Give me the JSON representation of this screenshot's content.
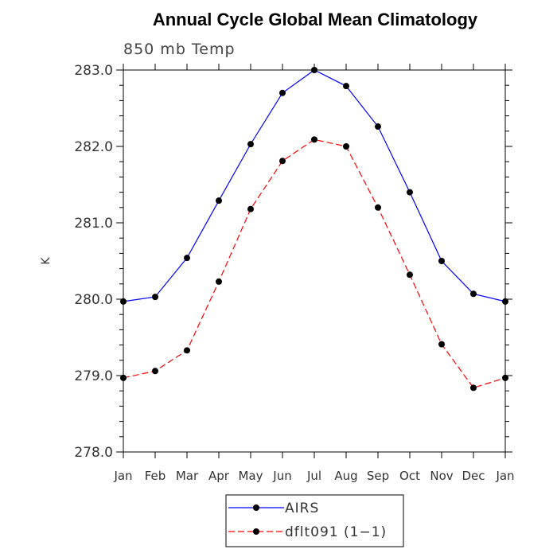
{
  "chart_data": {
    "type": "line",
    "title": "Annual Cycle Global Mean Climatology",
    "subtitle": "850 mb Temp",
    "ylabel": "K",
    "xlabel": "",
    "categories": [
      "Jan",
      "Feb",
      "Mar",
      "Apr",
      "May",
      "Jun",
      "Jul",
      "Aug",
      "Sep",
      "Oct",
      "Nov",
      "Dec",
      "Jan"
    ],
    "ylim": [
      278.0,
      283.0
    ],
    "yticks": [
      "278.0",
      "279.0",
      "280.0",
      "281.0",
      "282.0",
      "283.0"
    ],
    "grid": false,
    "legend_position": "bottom-center",
    "series": [
      {
        "name": "AIRS",
        "color": "#0000ff",
        "dash": "solid",
        "values": [
          279.97,
          280.03,
          280.54,
          281.29,
          282.03,
          282.7,
          283.0,
          282.79,
          282.26,
          281.4,
          280.5,
          280.07,
          279.97
        ]
      },
      {
        "name": "dflt091 (1−1)",
        "color": "#ff0000",
        "dash": "dashed",
        "values": [
          278.97,
          279.06,
          279.33,
          280.23,
          281.18,
          281.81,
          282.09,
          282.0,
          281.2,
          280.32,
          279.41,
          278.84,
          278.97
        ]
      }
    ]
  }
}
